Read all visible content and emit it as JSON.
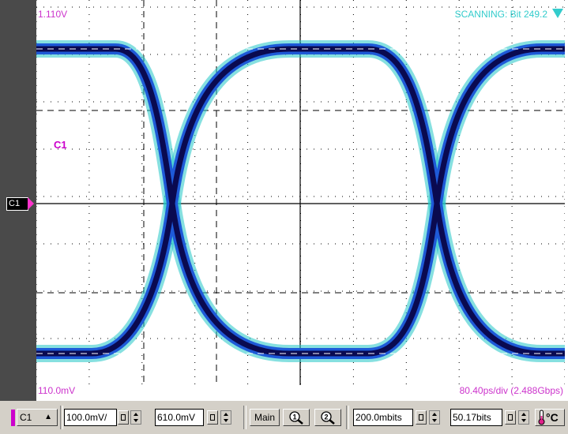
{
  "scope": {
    "top_level": "1.110V",
    "bottom_level": "110.0mV",
    "scan_status": "SCANNING: Bit 249.2",
    "timebase": "80.40ps/div (2.488Gbps)",
    "trace_label": "C1",
    "channel_marker": "C1",
    "colors": {
      "trace_label": "#cc00cc",
      "status": "#33cccc",
      "eye_core": "#0a0a50",
      "eye_mid": "#1e5ad8",
      "eye_edge": "#22c6c6"
    }
  },
  "toolbar": {
    "channel": "C1",
    "channel_arrow": "▲",
    "scale": "100.0mV/",
    "offset": "610.0mV",
    "main": "Main",
    "zoom1_icon": "zoom-1-icon",
    "zoom2_icon": "zoom-2-icon",
    "bits_per_div": "200.0mbits",
    "bit_position": "50.17bits",
    "temp_unit": "°C"
  }
}
